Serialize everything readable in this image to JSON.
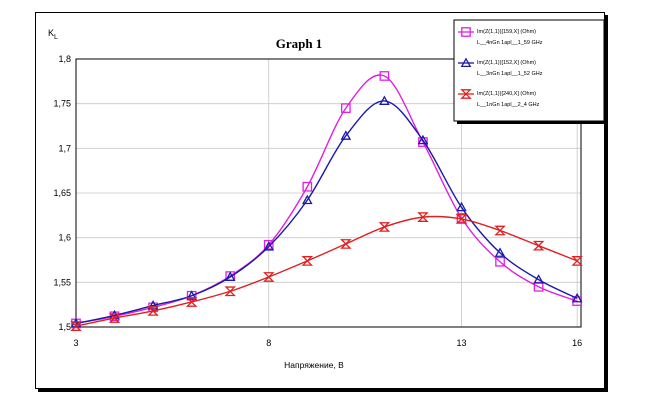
{
  "chart_data": {
    "type": "line",
    "title": "Graph 1",
    "xlabel": "Напряжение, В",
    "ylabel": "K",
    "ylabel_sub": "L",
    "xlim": [
      3,
      16.1
    ],
    "ylim": [
      1.5,
      1.8
    ],
    "x_ticks": [
      3,
      8,
      13,
      16
    ],
    "y_ticks": [
      1.5,
      1.55,
      1.6,
      1.65,
      1.7,
      1.75,
      1.8
    ],
    "y_tick_labels": [
      "1,5",
      "1,55",
      "1,6",
      "1,65",
      "1,7",
      "1,75",
      "1,8"
    ],
    "grid": true,
    "legend_position": "top-right",
    "series": [
      {
        "name": "Im(Z(1,1))[159,X] (Ohm)",
        "sublabel": "L__4nGn 1apl__1_59 GHz",
        "color": "#e020e0",
        "marker": "square",
        "x": [
          3,
          4,
          5,
          6,
          7,
          8,
          9,
          10,
          11,
          12,
          13,
          14,
          15,
          16
        ],
        "y": [
          1.504,
          1.512,
          1.522,
          1.535,
          1.557,
          1.592,
          1.657,
          1.745,
          1.781,
          1.707,
          1.622,
          1.573,
          1.545,
          1.529
        ]
      },
      {
        "name": "Im(Z(1,1))[152,X] (Ohm)",
        "sublabel": "L__3nGn 1apl__1_52 GHz",
        "color": "#1a1aa8",
        "marker": "triangle",
        "x": [
          3,
          4,
          5,
          6,
          7,
          8,
          9,
          10,
          11,
          12,
          13,
          14,
          15,
          16
        ],
        "y": [
          1.504,
          1.513,
          1.524,
          1.535,
          1.556,
          1.59,
          1.642,
          1.714,
          1.753,
          1.709,
          1.634,
          1.583,
          1.553,
          1.532
        ]
      },
      {
        "name": "Im(Z(1,1))[240,X] (Ohm)",
        "sublabel": "L__1nGn 1apl__2_4 GHz",
        "color": "#e02020",
        "marker": "hourglass",
        "x": [
          3,
          4,
          5,
          6,
          7,
          8,
          9,
          10,
          11,
          12,
          13,
          14,
          15,
          16
        ],
        "y": [
          1.501,
          1.51,
          1.518,
          1.528,
          1.54,
          1.556,
          1.574,
          1.593,
          1.612,
          1.623,
          1.621,
          1.608,
          1.591,
          1.574
        ]
      }
    ]
  }
}
